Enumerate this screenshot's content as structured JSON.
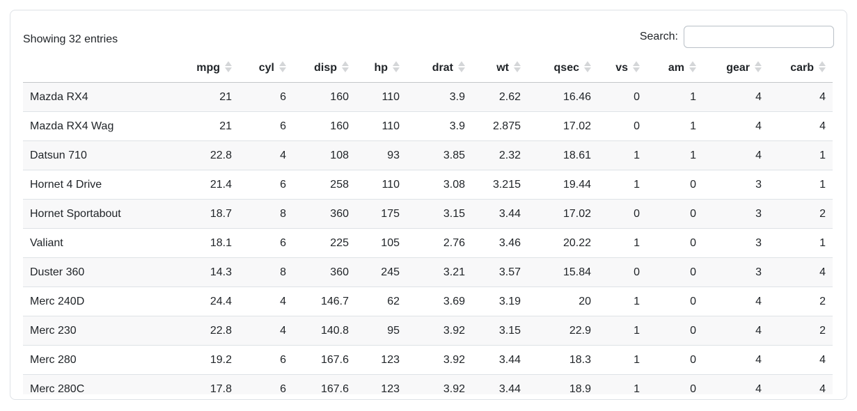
{
  "info_text": "Showing 32 entries",
  "search": {
    "label": "Search:",
    "value": "",
    "placeholder": ""
  },
  "table": {
    "columns": [
      {
        "label": "",
        "sortable": false
      },
      {
        "label": "mpg",
        "sortable": true
      },
      {
        "label": "cyl",
        "sortable": true
      },
      {
        "label": "disp",
        "sortable": true
      },
      {
        "label": "hp",
        "sortable": true
      },
      {
        "label": "drat",
        "sortable": true
      },
      {
        "label": "wt",
        "sortable": true
      },
      {
        "label": "qsec",
        "sortable": true
      },
      {
        "label": "vs",
        "sortable": true
      },
      {
        "label": "am",
        "sortable": true
      },
      {
        "label": "gear",
        "sortable": true
      },
      {
        "label": "carb",
        "sortable": true
      }
    ],
    "rows": [
      {
        "name": "Mazda RX4",
        "values": [
          21,
          6,
          160,
          110,
          3.9,
          2.62,
          16.46,
          0,
          1,
          4,
          4
        ]
      },
      {
        "name": "Mazda RX4 Wag",
        "values": [
          21,
          6,
          160,
          110,
          3.9,
          2.875,
          17.02,
          0,
          1,
          4,
          4
        ]
      },
      {
        "name": "Datsun 710",
        "values": [
          22.8,
          4,
          108,
          93,
          3.85,
          2.32,
          18.61,
          1,
          1,
          4,
          1
        ]
      },
      {
        "name": "Hornet 4 Drive",
        "values": [
          21.4,
          6,
          258,
          110,
          3.08,
          3.215,
          19.44,
          1,
          0,
          3,
          1
        ]
      },
      {
        "name": "Hornet Sportabout",
        "values": [
          18.7,
          8,
          360,
          175,
          3.15,
          3.44,
          17.02,
          0,
          0,
          3,
          2
        ]
      },
      {
        "name": "Valiant",
        "values": [
          18.1,
          6,
          225,
          105,
          2.76,
          3.46,
          20.22,
          1,
          0,
          3,
          1
        ]
      },
      {
        "name": "Duster 360",
        "values": [
          14.3,
          8,
          360,
          245,
          3.21,
          3.57,
          15.84,
          0,
          0,
          3,
          4
        ]
      },
      {
        "name": "Merc 240D",
        "values": [
          24.4,
          4,
          146.7,
          62,
          3.69,
          3.19,
          20,
          1,
          0,
          4,
          2
        ]
      },
      {
        "name": "Merc 230",
        "values": [
          22.8,
          4,
          140.8,
          95,
          3.92,
          3.15,
          22.9,
          1,
          0,
          4,
          2
        ]
      },
      {
        "name": "Merc 280",
        "values": [
          19.2,
          6,
          167.6,
          123,
          3.92,
          3.44,
          18.3,
          1,
          0,
          4,
          4
        ]
      },
      {
        "name": "Merc 280C",
        "values": [
          17.8,
          6,
          167.6,
          123,
          3.92,
          3.44,
          18.9,
          1,
          0,
          4,
          4
        ]
      }
    ]
  }
}
